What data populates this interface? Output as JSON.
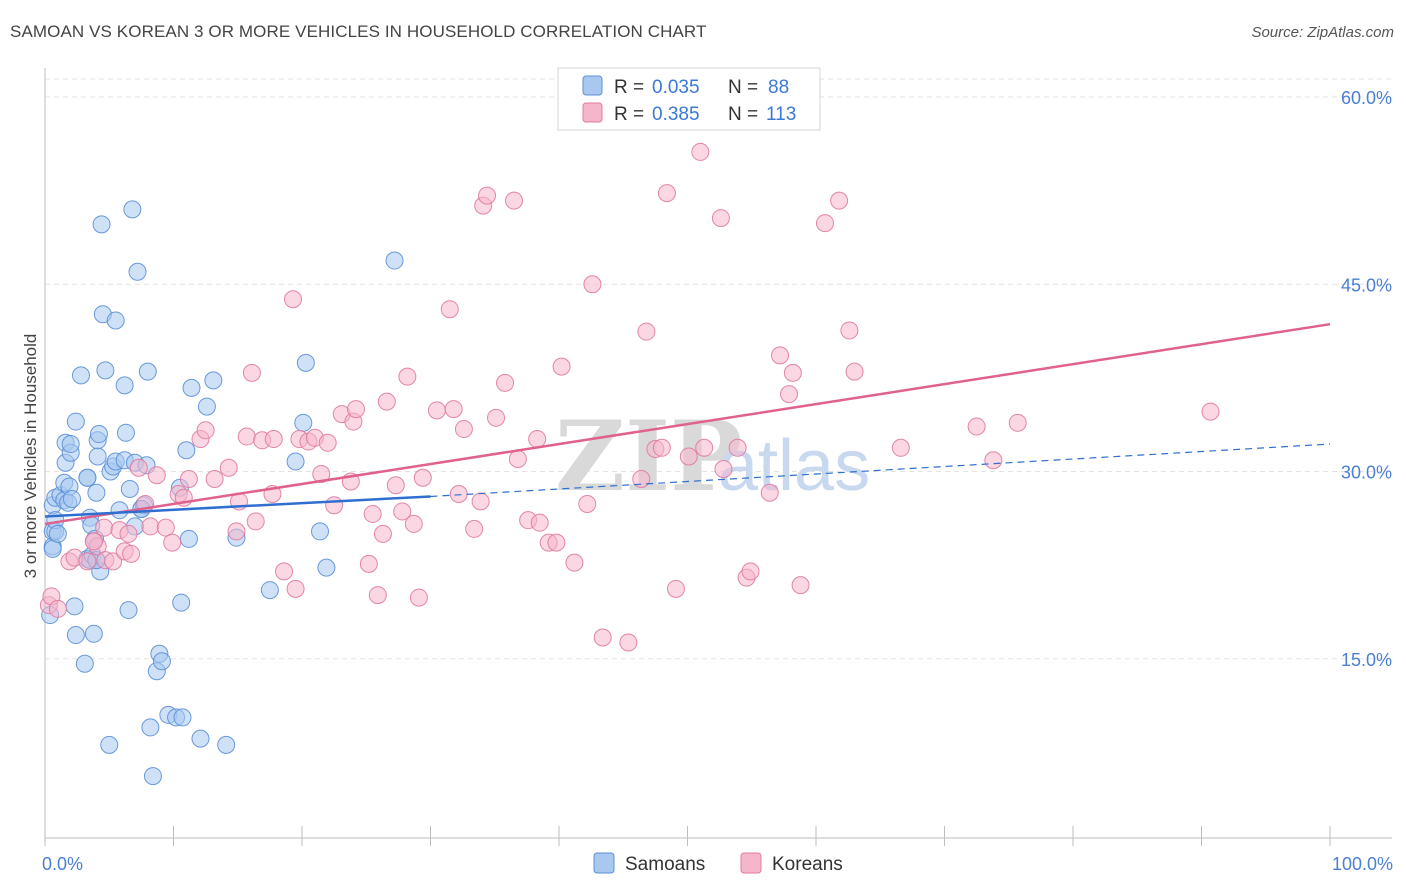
{
  "title": "SAMOAN VS KOREAN 3 OR MORE VEHICLES IN HOUSEHOLD CORRELATION CHART",
  "source": "Source: ZipAtlas.com",
  "watermark": {
    "zip": "ZIP",
    "atlas": "atlas"
  },
  "colors": {
    "samoan_fill": "#a8c8f0",
    "samoan_stroke": "#5b8fd6",
    "samoan_line": "#2f6fd0",
    "korean_fill": "#f5b6cc",
    "korean_stroke": "#e07aa0",
    "korean_line": "#e0608e",
    "grid": "#e3e3e3",
    "axis_text": "#4a7fd4"
  },
  "legend": {
    "rows": [
      {
        "r_label": "R =",
        "r_value": "0.035",
        "n_label": "N =",
        "n_value": "88"
      },
      {
        "r_label": "R =",
        "r_value": "0.385",
        "n_label": "N =",
        "n_value": "113"
      }
    ]
  },
  "chart_data": {
    "type": "scatter",
    "title": "SAMOAN VS KOREAN 3 OR MORE VEHICLES IN HOUSEHOLD CORRELATION CHART",
    "xlabel": "",
    "ylabel": "3 or more Vehicles in Household",
    "xlim": [
      0,
      100
    ],
    "ylim": [
      0,
      61.5
    ],
    "x_tick_labels": [
      "0.0%",
      "100.0%"
    ],
    "y_ticks": [
      15,
      30,
      45,
      60
    ],
    "y_tick_labels": [
      "15.0%",
      "30.0%",
      "45.0%",
      "60.0%"
    ],
    "series": [
      {
        "name": "Samoans",
        "r": 0.035,
        "n": 88,
        "trend_solid": [
          [
            0,
            26.4
          ],
          [
            30,
            28.0
          ]
        ],
        "trend_dashed": [
          [
            30,
            28.0
          ],
          [
            100,
            32.2
          ]
        ],
        "points": [
          [
            0.4,
            18.5
          ],
          [
            0.6,
            25.2
          ],
          [
            0.6,
            24.0
          ],
          [
            0.6,
            23.8
          ],
          [
            0.6,
            27.3
          ],
          [
            0.8,
            27.9
          ],
          [
            0.8,
            25.2
          ],
          [
            0.8,
            26.1
          ],
          [
            1.0,
            25.0
          ],
          [
            1.2,
            28.1
          ],
          [
            1.5,
            27.7
          ],
          [
            1.5,
            29.1
          ],
          [
            1.6,
            30.7
          ],
          [
            1.6,
            32.3
          ],
          [
            1.8,
            27.5
          ],
          [
            1.9,
            28.8
          ],
          [
            2.0,
            31.5
          ],
          [
            2.0,
            32.2
          ],
          [
            2.1,
            27.8
          ],
          [
            2.3,
            19.2
          ],
          [
            2.4,
            16.9
          ],
          [
            2.4,
            34.0
          ],
          [
            2.8,
            37.7
          ],
          [
            3.1,
            14.6
          ],
          [
            3.3,
            29.5
          ],
          [
            3.3,
            23.0
          ],
          [
            3.5,
            26.3
          ],
          [
            3.5,
            22.9
          ],
          [
            3.6,
            25.7
          ],
          [
            3.7,
            23.3
          ],
          [
            3.8,
            17.0
          ],
          [
            3.9,
            24.6
          ],
          [
            4.0,
            22.9
          ],
          [
            4.0,
            28.3
          ],
          [
            4.1,
            31.2
          ],
          [
            4.1,
            32.5
          ],
          [
            4.2,
            33.0
          ],
          [
            4.3,
            22.0
          ],
          [
            4.4,
            49.8
          ],
          [
            4.5,
            42.6
          ],
          [
            4.7,
            38.1
          ],
          [
            5.0,
            8.1
          ],
          [
            5.1,
            30.0
          ],
          [
            5.3,
            30.4
          ],
          [
            5.5,
            30.8
          ],
          [
            5.5,
            42.1
          ],
          [
            5.8,
            26.9
          ],
          [
            6.2,
            30.9
          ],
          [
            6.2,
            36.9
          ],
          [
            6.3,
            33.1
          ],
          [
            6.5,
            18.9
          ],
          [
            6.6,
            28.6
          ],
          [
            6.8,
            51.0
          ],
          [
            7.0,
            30.7
          ],
          [
            7.0,
            25.6
          ],
          [
            7.2,
            46.0
          ],
          [
            7.5,
            27.0
          ],
          [
            7.7,
            27.3
          ],
          [
            7.9,
            30.5
          ],
          [
            8.0,
            38.0
          ],
          [
            8.2,
            9.5
          ],
          [
            8.4,
            5.6
          ],
          [
            8.7,
            14.0
          ],
          [
            8.9,
            15.4
          ],
          [
            9.1,
            14.8
          ],
          [
            9.6,
            10.5
          ],
          [
            10.2,
            10.3
          ],
          [
            10.5,
            28.7
          ],
          [
            10.6,
            19.5
          ],
          [
            10.7,
            10.3
          ],
          [
            11.0,
            31.7
          ],
          [
            11.2,
            24.6
          ],
          [
            11.4,
            36.7
          ],
          [
            12.1,
            8.6
          ],
          [
            12.6,
            35.2
          ],
          [
            13.1,
            37.3
          ],
          [
            14.1,
            8.1
          ],
          [
            14.9,
            24.7
          ],
          [
            17.5,
            20.5
          ],
          [
            19.5,
            30.8
          ],
          [
            20.1,
            33.9
          ],
          [
            20.3,
            38.7
          ],
          [
            21.4,
            25.2
          ],
          [
            21.9,
            22.3
          ],
          [
            27.2,
            46.9
          ],
          [
            7.5,
            27.0
          ],
          [
            4.0,
            22.9
          ],
          [
            3.3,
            29.5
          ]
        ]
      },
      {
        "name": "Koreans",
        "r": 0.385,
        "n": 113,
        "trend_solid": [
          [
            0,
            25.8
          ],
          [
            100,
            41.8
          ]
        ],
        "points": [
          [
            0.3,
            19.3
          ],
          [
            0.5,
            20.0
          ],
          [
            1.0,
            19.0
          ],
          [
            1.9,
            22.8
          ],
          [
            2.3,
            23.1
          ],
          [
            3.3,
            22.8
          ],
          [
            3.8,
            24.4
          ],
          [
            4.1,
            24.0
          ],
          [
            4.6,
            25.5
          ],
          [
            4.7,
            22.9
          ],
          [
            5.3,
            22.8
          ],
          [
            5.8,
            25.3
          ],
          [
            6.2,
            23.6
          ],
          [
            6.5,
            25.0
          ],
          [
            6.7,
            23.4
          ],
          [
            7.3,
            30.3
          ],
          [
            7.8,
            27.4
          ],
          [
            8.2,
            25.6
          ],
          [
            8.7,
            29.7
          ],
          [
            9.4,
            25.5
          ],
          [
            9.9,
            24.3
          ],
          [
            10.4,
            28.2
          ],
          [
            10.8,
            27.9
          ],
          [
            11.2,
            29.4
          ],
          [
            12.1,
            32.6
          ],
          [
            12.5,
            33.3
          ],
          [
            13.2,
            29.4
          ],
          [
            14.3,
            30.3
          ],
          [
            14.9,
            25.2
          ],
          [
            15.1,
            27.6
          ],
          [
            15.7,
            32.8
          ],
          [
            16.1,
            37.9
          ],
          [
            16.4,
            26.0
          ],
          [
            16.9,
            32.5
          ],
          [
            17.7,
            28.2
          ],
          [
            17.8,
            32.6
          ],
          [
            18.6,
            22.0
          ],
          [
            19.3,
            43.8
          ],
          [
            19.5,
            20.6
          ],
          [
            19.8,
            32.6
          ],
          [
            20.5,
            32.4
          ],
          [
            21.0,
            32.7
          ],
          [
            21.5,
            29.8
          ],
          [
            22.0,
            32.3
          ],
          [
            22.5,
            27.3
          ],
          [
            23.1,
            34.6
          ],
          [
            23.8,
            29.2
          ],
          [
            24.0,
            34.0
          ],
          [
            24.2,
            35.0
          ],
          [
            25.2,
            22.6
          ],
          [
            25.5,
            26.6
          ],
          [
            25.9,
            20.1
          ],
          [
            26.3,
            25.0
          ],
          [
            26.6,
            35.6
          ],
          [
            27.3,
            28.9
          ],
          [
            27.8,
            26.8
          ],
          [
            28.2,
            37.6
          ],
          [
            28.7,
            25.8
          ],
          [
            29.1,
            19.9
          ],
          [
            29.4,
            29.5
          ],
          [
            30.5,
            34.9
          ],
          [
            31.5,
            43.0
          ],
          [
            31.8,
            35.0
          ],
          [
            32.2,
            28.2
          ],
          [
            32.6,
            33.4
          ],
          [
            33.4,
            25.4
          ],
          [
            33.9,
            27.6
          ],
          [
            34.1,
            51.3
          ],
          [
            34.4,
            52.1
          ],
          [
            35.1,
            34.3
          ],
          [
            35.8,
            37.1
          ],
          [
            36.5,
            51.7
          ],
          [
            36.8,
            31.0
          ],
          [
            37.6,
            26.1
          ],
          [
            38.3,
            32.6
          ],
          [
            38.5,
            25.9
          ],
          [
            39.2,
            24.3
          ],
          [
            39.8,
            24.3
          ],
          [
            40.2,
            38.4
          ],
          [
            41.2,
            22.7
          ],
          [
            42.2,
            27.4
          ],
          [
            42.6,
            45.0
          ],
          [
            43.4,
            16.7
          ],
          [
            45.4,
            16.3
          ],
          [
            46.4,
            29.4
          ],
          [
            46.8,
            41.2
          ],
          [
            47.5,
            31.8
          ],
          [
            48.0,
            31.9
          ],
          [
            48.4,
            52.3
          ],
          [
            49.1,
            20.6
          ],
          [
            50.1,
            31.2
          ],
          [
            51.0,
            55.6
          ],
          [
            51.3,
            31.9
          ],
          [
            52.6,
            50.3
          ],
          [
            52.8,
            30.2
          ],
          [
            53.9,
            31.9
          ],
          [
            54.6,
            21.5
          ],
          [
            54.9,
            22.0
          ],
          [
            56.4,
            28.3
          ],
          [
            57.2,
            39.3
          ],
          [
            57.9,
            36.2
          ],
          [
            58.2,
            37.9
          ],
          [
            58.8,
            20.9
          ],
          [
            60.7,
            49.9
          ],
          [
            61.8,
            51.7
          ],
          [
            62.6,
            41.3
          ],
          [
            63.0,
            38.0
          ],
          [
            66.6,
            31.9
          ],
          [
            72.5,
            33.6
          ],
          [
            73.8,
            30.9
          ],
          [
            75.7,
            33.9
          ],
          [
            90.7,
            34.8
          ],
          [
            3.8,
            24.4
          ]
        ]
      }
    ],
    "legend": [
      "Samoans",
      "Koreans"
    ]
  }
}
